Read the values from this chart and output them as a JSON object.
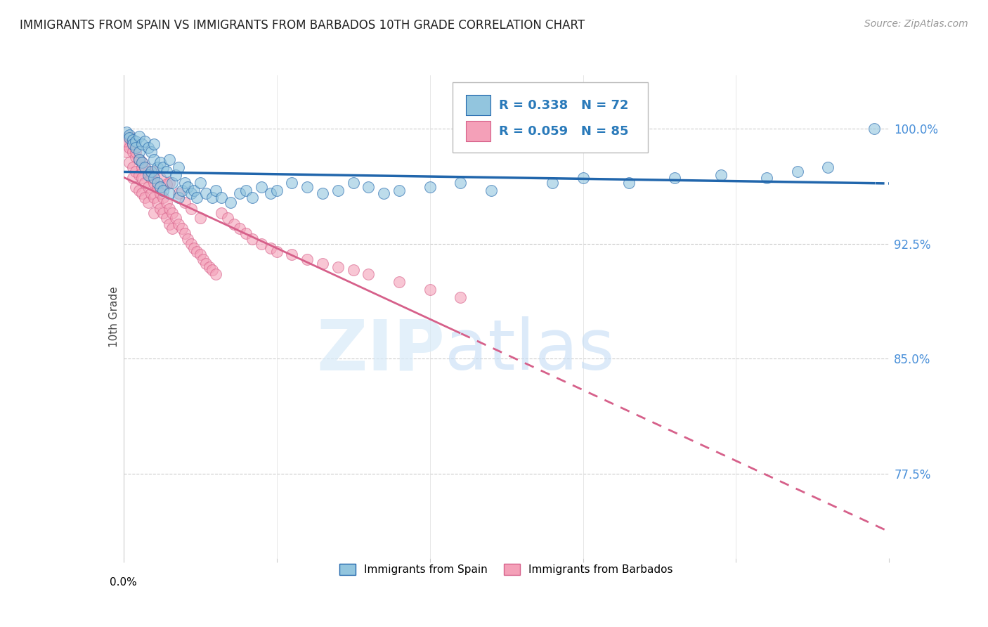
{
  "title": "IMMIGRANTS FROM SPAIN VS IMMIGRANTS FROM BARBADOS 10TH GRADE CORRELATION CHART",
  "source": "Source: ZipAtlas.com",
  "ylabel_label": "10th Grade",
  "ytick_labels": [
    "77.5%",
    "85.0%",
    "92.5%",
    "100.0%"
  ],
  "ytick_values": [
    0.775,
    0.85,
    0.925,
    1.0
  ],
  "xlim": [
    0.0,
    0.25
  ],
  "ylim": [
    0.72,
    1.035
  ],
  "legend_spain_R": "0.338",
  "legend_spain_N": "72",
  "legend_barbados_R": "0.059",
  "legend_barbados_N": "85",
  "color_spain": "#92c5de",
  "color_barbados": "#f4a0b8",
  "color_spain_line": "#2166ac",
  "color_barbados_line": "#d6608a",
  "spain_x": [
    0.001,
    0.002,
    0.002,
    0.003,
    0.003,
    0.004,
    0.004,
    0.005,
    0.005,
    0.005,
    0.006,
    0.006,
    0.007,
    0.007,
    0.008,
    0.008,
    0.009,
    0.009,
    0.01,
    0.01,
    0.01,
    0.011,
    0.011,
    0.012,
    0.012,
    0.013,
    0.013,
    0.014,
    0.015,
    0.015,
    0.016,
    0.017,
    0.018,
    0.018,
    0.019,
    0.02,
    0.021,
    0.022,
    0.023,
    0.024,
    0.025,
    0.027,
    0.029,
    0.03,
    0.032,
    0.035,
    0.038,
    0.04,
    0.042,
    0.045,
    0.048,
    0.05,
    0.055,
    0.06,
    0.065,
    0.07,
    0.075,
    0.08,
    0.085,
    0.09,
    0.1,
    0.11,
    0.12,
    0.14,
    0.15,
    0.165,
    0.18,
    0.195,
    0.21,
    0.22,
    0.23,
    0.245
  ],
  "spain_y": [
    0.998,
    0.996,
    0.994,
    0.993,
    0.99,
    0.992,
    0.988,
    0.995,
    0.985,
    0.98,
    0.99,
    0.978,
    0.992,
    0.975,
    0.988,
    0.97,
    0.985,
    0.972,
    0.99,
    0.98,
    0.968,
    0.975,
    0.965,
    0.978,
    0.962,
    0.975,
    0.96,
    0.972,
    0.98,
    0.958,
    0.965,
    0.97,
    0.975,
    0.955,
    0.96,
    0.965,
    0.962,
    0.958,
    0.96,
    0.955,
    0.965,
    0.958,
    0.955,
    0.96,
    0.955,
    0.952,
    0.958,
    0.96,
    0.955,
    0.962,
    0.958,
    0.96,
    0.965,
    0.962,
    0.958,
    0.96,
    0.965,
    0.962,
    0.958,
    0.96,
    0.962,
    0.965,
    0.96,
    0.965,
    0.968,
    0.965,
    0.968,
    0.97,
    0.968,
    0.972,
    0.975,
    1.0
  ],
  "barbados_x": [
    0.0005,
    0.001,
    0.001,
    0.002,
    0.002,
    0.003,
    0.003,
    0.003,
    0.004,
    0.004,
    0.004,
    0.005,
    0.005,
    0.005,
    0.006,
    0.006,
    0.006,
    0.007,
    0.007,
    0.007,
    0.008,
    0.008,
    0.008,
    0.009,
    0.009,
    0.01,
    0.01,
    0.01,
    0.011,
    0.011,
    0.012,
    0.012,
    0.013,
    0.013,
    0.014,
    0.014,
    0.015,
    0.015,
    0.016,
    0.016,
    0.017,
    0.018,
    0.019,
    0.02,
    0.021,
    0.022,
    0.023,
    0.024,
    0.025,
    0.026,
    0.027,
    0.028,
    0.029,
    0.03,
    0.032,
    0.034,
    0.036,
    0.038,
    0.04,
    0.042,
    0.045,
    0.048,
    0.05,
    0.055,
    0.06,
    0.065,
    0.07,
    0.075,
    0.08,
    0.09,
    0.1,
    0.11,
    0.015,
    0.018,
    0.02,
    0.022,
    0.025,
    0.01,
    0.012,
    0.014,
    0.002,
    0.003,
    0.004,
    0.005,
    0.006
  ],
  "barbados_y": [
    0.99,
    0.992,
    0.985,
    0.988,
    0.978,
    0.985,
    0.975,
    0.968,
    0.982,
    0.972,
    0.962,
    0.98,
    0.97,
    0.96,
    0.978,
    0.968,
    0.958,
    0.975,
    0.965,
    0.955,
    0.972,
    0.962,
    0.952,
    0.968,
    0.958,
    0.965,
    0.955,
    0.945,
    0.962,
    0.952,
    0.958,
    0.948,
    0.955,
    0.945,
    0.952,
    0.942,
    0.948,
    0.938,
    0.945,
    0.935,
    0.942,
    0.938,
    0.935,
    0.932,
    0.928,
    0.925,
    0.922,
    0.92,
    0.918,
    0.915,
    0.912,
    0.91,
    0.908,
    0.905,
    0.945,
    0.942,
    0.938,
    0.935,
    0.932,
    0.928,
    0.925,
    0.922,
    0.92,
    0.918,
    0.915,
    0.912,
    0.91,
    0.908,
    0.905,
    0.9,
    0.895,
    0.89,
    0.965,
    0.958,
    0.952,
    0.948,
    0.942,
    0.972,
    0.968,
    0.964,
    0.995,
    0.99,
    0.985,
    0.98,
    0.975
  ]
}
